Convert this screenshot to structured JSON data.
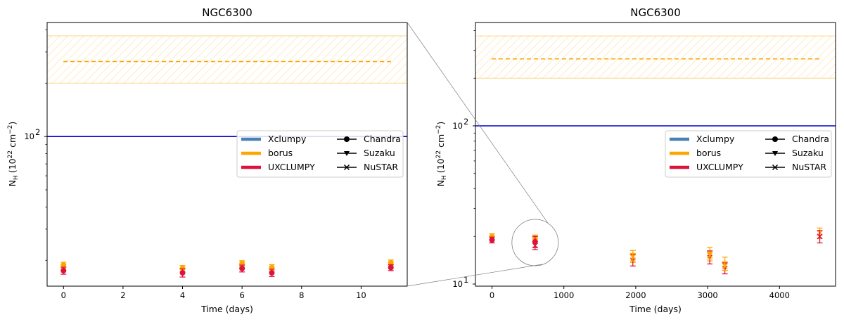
{
  "chart_data": [
    {
      "type": "scatter",
      "title": "NGC6300",
      "xlabel": "Time (days)",
      "ylabel_main": "N",
      "ylabel_sub": "H",
      "ylabel_units": "(10",
      "ylabel_exp": "22",
      "ylabel_units2": " cm",
      "ylabel_exp2": "−2",
      "ylabel_close": ")",
      "yscale": "log",
      "xlim": [
        -0.55,
        11.55
      ],
      "ylim": [
        14.3,
        440
      ],
      "xticks": [
        0,
        2,
        4,
        6,
        8,
        10
      ],
      "yticks": [
        {
          "value": 100,
          "base": "10",
          "exp": "2"
        }
      ],
      "bands": [
        {
          "name": "borus range",
          "color": "#ffa500",
          "y_low": 200,
          "y_high": 370,
          "dash_value": 265
        }
      ],
      "hlines": [
        {
          "name": "Xclumpy reference",
          "color": "#0000cd",
          "value": 100
        }
      ],
      "series": [
        {
          "name": "borus",
          "instrument": "Chandra",
          "color": "#ffa500",
          "points": [
            {
              "x": 0,
              "y": 18.8,
              "lo": 0.7,
              "hi": 0.7
            },
            {
              "x": 4,
              "y": 18.0,
              "lo": 0.7,
              "hi": 0.7
            },
            {
              "x": 6,
              "y": 19.2,
              "lo": 0.7,
              "hi": 0.7
            },
            {
              "x": 7,
              "y": 18.2,
              "lo": 0.7,
              "hi": 0.7
            },
            {
              "x": 11,
              "y": 19.4,
              "lo": 0.7,
              "hi": 0.7
            }
          ]
        },
        {
          "name": "UXCLUMPY",
          "instrument": "Chandra",
          "color": "#dc143c",
          "points": [
            {
              "x": 0,
              "y": 17.5,
              "lo": 0.8,
              "hi": 0.8
            },
            {
              "x": 4,
              "y": 17.0,
              "lo": 0.9,
              "hi": 0.9
            },
            {
              "x": 6,
              "y": 18.0,
              "lo": 0.8,
              "hi": 0.8
            },
            {
              "x": 7,
              "y": 17.0,
              "lo": 0.8,
              "hi": 0.8
            },
            {
              "x": 11,
              "y": 18.2,
              "lo": 0.7,
              "hi": 0.7
            }
          ]
        }
      ]
    },
    {
      "type": "scatter",
      "title": "NGC6300",
      "xlabel": "Time (days)",
      "ylabel_main": "N",
      "ylabel_sub": "H",
      "ylabel_units": "(10",
      "ylabel_exp": "22",
      "ylabel_units2": " cm",
      "ylabel_exp2": "−2",
      "ylabel_close": ")",
      "yscale": "log",
      "xlim": [
        -230,
        4780
      ],
      "ylim": [
        9.7,
        450
      ],
      "xticks": [
        0,
        1000,
        2000,
        3000,
        4000
      ],
      "yticks": [
        {
          "value": 10,
          "base": "10",
          "exp": "1"
        },
        {
          "value": 100,
          "base": "10",
          "exp": "2"
        }
      ],
      "bands": [
        {
          "name": "borus range",
          "color": "#ffa500",
          "y_low": 200,
          "y_high": 370,
          "dash_value": 265
        }
      ],
      "hlines": [
        {
          "name": "Xclumpy reference",
          "color": "#0000cd",
          "value": 100
        }
      ],
      "series": [
        {
          "name": "borus",
          "instrument": "Chandra",
          "color": "#ffa500",
          "points": [
            {
              "x": 0,
              "y": 20.0,
              "lo": 0.8,
              "hi": 0.8
            },
            {
              "x": 600,
              "y": 19.5,
              "lo": 0.9,
              "hi": 0.9
            }
          ]
        },
        {
          "name": "UXCLUMPY",
          "instrument": "Chandra",
          "color": "#dc143c",
          "points": [
            {
              "x": 0,
              "y": 19.0,
              "lo": 0.8,
              "hi": 0.8
            },
            {
              "x": 600,
              "y": 18.5,
              "lo": 1.5,
              "hi": 1.5
            }
          ]
        },
        {
          "name": "borus",
          "instrument": "Suzaku",
          "color": "#ffa500",
          "points": [
            {
              "x": 1960,
              "y": 15.0,
              "lo": 1.3,
              "hi": 1.3
            },
            {
              "x": 3030,
              "y": 15.5,
              "lo": 1.5,
              "hi": 1.5
            },
            {
              "x": 3240,
              "y": 13.5,
              "lo": 1.3,
              "hi": 1.3
            }
          ]
        },
        {
          "name": "UXCLUMPY",
          "instrument": "Suzaku",
          "color": "#dc143c",
          "points": [
            {
              "x": 1960,
              "y": 14.2,
              "lo": 1.2,
              "hi": 1.2
            },
            {
              "x": 3030,
              "y": 14.8,
              "lo": 1.4,
              "hi": 1.4
            },
            {
              "x": 3240,
              "y": 12.6,
              "lo": 1.0,
              "hi": 1.0
            }
          ]
        },
        {
          "name": "borus",
          "instrument": "NuSTAR",
          "color": "#ffa500",
          "points": [
            {
              "x": 1960,
              "y": 14.8,
              "lo": 0.8,
              "hi": 0.8
            },
            {
              "x": 3030,
              "y": 15.2,
              "lo": 0.8,
              "hi": 0.8
            },
            {
              "x": 3240,
              "y": 13.0,
              "lo": 0.8,
              "hi": 0.8
            },
            {
              "x": 4560,
              "y": 21.0,
              "lo": 1.6,
              "hi": 1.6
            }
          ]
        },
        {
          "name": "UXCLUMPY",
          "instrument": "NuSTAR",
          "color": "#dc143c",
          "points": [
            {
              "x": 600,
              "y": 17.5,
              "lo": 1.0,
              "hi": 1.0
            },
            {
              "x": 4560,
              "y": 20.0,
              "lo": 1.8,
              "hi": 1.8
            }
          ]
        }
      ],
      "zoom_circle": {
        "x": 600,
        "y": 18.3
      }
    }
  ],
  "legend": {
    "models": [
      {
        "label": "Xclumpy",
        "color": "#4682b4"
      },
      {
        "label": "borus",
        "color": "#ffa500"
      },
      {
        "label": "UXCLUMPY",
        "color": "#dc143c"
      }
    ],
    "instruments": [
      {
        "label": "Chandra",
        "marker": "circle"
      },
      {
        "label": "Suzaku",
        "marker": "triangle-down"
      },
      {
        "label": "NuSTAR",
        "marker": "x"
      }
    ]
  }
}
